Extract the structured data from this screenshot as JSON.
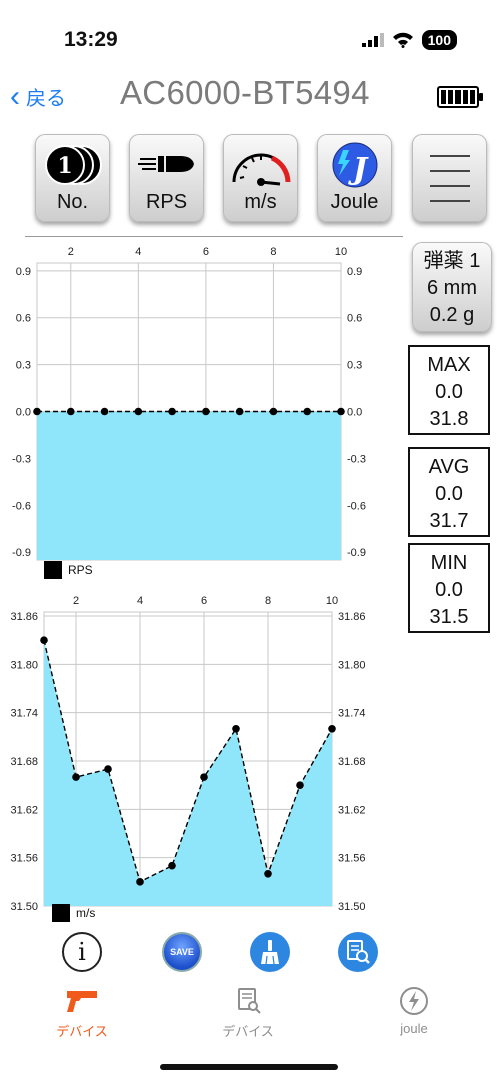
{
  "status_bar": {
    "time": "13:29",
    "battery": "100"
  },
  "nav": {
    "back_label": "戻る",
    "title": "AC6000-BT5494"
  },
  "toolbar": {
    "no_label": "No.",
    "rps_label": "RPS",
    "ms_label": "m/s",
    "joule_label": "Joule",
    "no_badge": "1"
  },
  "ammo": {
    "line1": "弾薬 1",
    "line2": "6 mm",
    "line3": "0.2 g"
  },
  "stats": {
    "max": {
      "label": "MAX",
      "rps": "0.0",
      "ms": "31.8"
    },
    "avg": {
      "label": "AVG",
      "rps": "0.0",
      "ms": "31.7"
    },
    "min": {
      "label": "MIN",
      "rps": "0.0",
      "ms": "31.5"
    }
  },
  "actions": {
    "save_label": "SAVE"
  },
  "tabs": [
    {
      "label": "デバイス",
      "icon": "pistol-icon",
      "active": true
    },
    {
      "label": "デバイス",
      "icon": "document-search-icon",
      "active": false
    },
    {
      "label": "joule",
      "icon": "lightning-icon",
      "active": false
    }
  ],
  "colors": {
    "accent": "#1f7df2",
    "fill": "#8fe6fb",
    "active_tab": "#f05a1a"
  },
  "chart_data": [
    {
      "type": "area",
      "x": [
        1,
        2,
        3,
        4,
        5,
        6,
        7,
        8,
        9,
        10
      ],
      "series": [
        {
          "name": "RPS",
          "values": [
            0,
            0,
            0,
            0,
            0,
            0,
            0,
            0,
            0,
            0
          ]
        }
      ],
      "xticks": [
        2,
        4,
        6,
        8,
        10
      ],
      "yticks": [
        0.9,
        0.6,
        0.3,
        0.0,
        -0.3,
        -0.6,
        -0.9
      ],
      "ytick_labels": [
        "0.9",
        "0.6",
        "0.3",
        "0.0",
        "-0.3",
        "-0.6",
        "-0.9"
      ],
      "xlim": [
        1,
        10
      ],
      "ylim": [
        -0.95,
        0.95
      ],
      "fill_to": "bottom",
      "legend_placement": "bottom-left",
      "grid": true
    },
    {
      "type": "area",
      "x": [
        1,
        2,
        3,
        4,
        5,
        6,
        7,
        8,
        9,
        10
      ],
      "series": [
        {
          "name": "m/s",
          "values": [
            31.83,
            31.66,
            31.67,
            31.53,
            31.55,
            31.66,
            31.72,
            31.54,
            31.65,
            31.72
          ]
        }
      ],
      "xticks": [
        2,
        4,
        6,
        8,
        10
      ],
      "yticks": [
        31.86,
        31.8,
        31.74,
        31.68,
        31.62,
        31.56,
        31.5
      ],
      "ytick_labels": [
        "31.86",
        "31.80",
        "31.74",
        "31.68",
        "31.62",
        "31.56",
        "31.50"
      ],
      "xlim": [
        1,
        10
      ],
      "ylim": [
        31.5,
        31.865
      ],
      "fill_to": "bottom",
      "legend_placement": "bottom-left",
      "grid": true
    }
  ]
}
